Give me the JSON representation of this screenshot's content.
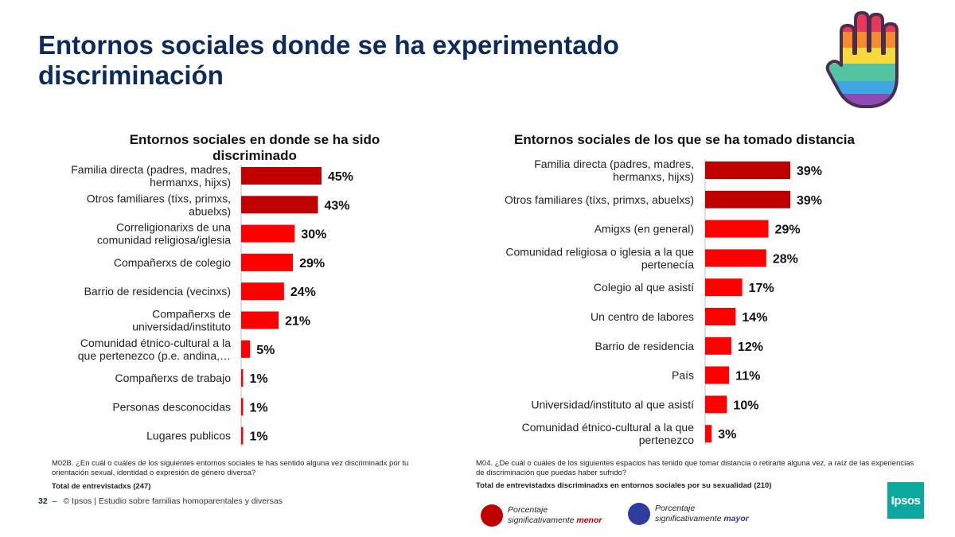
{
  "slide": {
    "title": "Entornos sociales donde se ha experimentado discriminación",
    "page_number": "32",
    "footer_text": "© Ipsos | Estudio sobre familias homoparentales y diversas",
    "logo_text": "Ipsos",
    "hand_icon": "rainbow-hand-icon"
  },
  "notes": {
    "left_question": "M02B. ¿En cuál o cuáles de los siguientes entornos sociales te has sentido alguna vez discriminadx por tu orientación sexual, identidad o expresión de género diversa?",
    "left_base": "Total de entrevistadxs (247)",
    "right_question": "M04. ¿De cuál o cuáles de los siguientes espacios has tenido que tomar distancia o retirarte alguna vez, a raíz de las experiencias de discriminación que puedas haber sufrido?",
    "right_base": "Total de entrevistadxs discriminadxs en entornos sociales por su sexualidad (210)"
  },
  "legend": {
    "lower_label_1": "Porcentaje",
    "lower_label_2a": "significativamente ",
    "lower_label_2b": "menor",
    "higher_label_1": "Porcentaje",
    "higher_label_2a": "significativamente ",
    "higher_label_2b": "mayor",
    "lower_color": "#c00000",
    "higher_color": "#2f3e9e"
  },
  "colors": {
    "bar": "#ff0000",
    "bar_significant_lower": "#c00000",
    "title": "#0d2b5c"
  },
  "chart_data": [
    {
      "type": "bar",
      "orientation": "horizontal",
      "title": "Entornos sociales en donde se ha sido discriminado",
      "categories": [
        "Familia directa (padres, madres, hermanxs, hijxs)",
        "Otros familiares (tíxs, primxs, abuelxs)",
        "Correligionarixs de una comunidad religiosa/iglesia",
        "Compañerxs de colegio",
        "Barrio de residencia (vecinxs)",
        "Compañerxs de universidad/instituto",
        "Comunidad étnico-cultural a la que pertenezco (p.e. andina,…",
        "Compañerxs de trabajo",
        "Personas desconocidas",
        "Lugares publicos"
      ],
      "values": [
        45,
        43,
        30,
        29,
        24,
        21,
        5,
        1,
        1,
        1
      ],
      "value_labels": [
        "45%",
        "43%",
        "30%",
        "29%",
        "24%",
        "21%",
        "5%",
        "1%",
        "1%",
        "1%"
      ],
      "significance": [
        "lower",
        "lower",
        "none",
        "none",
        "none",
        "none",
        "none",
        "none",
        "none",
        "none"
      ],
      "xlim": [
        0,
        100
      ],
      "grid": false
    },
    {
      "type": "bar",
      "orientation": "horizontal",
      "title": "Entornos sociales de los que se ha tomado distancia",
      "categories": [
        "Familia directa (padres, madres, hermanxs, hijxs)",
        "Otros familiares (tíxs, primxs, abuelxs)",
        "Amigxs (en general)",
        "Comunidad religiosa o iglesia a la que pertenecía",
        "Colegio al que asistí",
        "Un centro de labores",
        "Barrio de residencia",
        "País",
        "Universidad/instituto al que asistí",
        "Comunidad étnico-cultural a la que pertenezco"
      ],
      "values": [
        39,
        39,
        29,
        28,
        17,
        14,
        12,
        11,
        10,
        3
      ],
      "value_labels": [
        "39%",
        "39%",
        "29%",
        "28%",
        "17%",
        "14%",
        "12%",
        "11%",
        "10%",
        "3%"
      ],
      "significance": [
        "lower",
        "lower",
        "none",
        "none",
        "none",
        "none",
        "none",
        "none",
        "none",
        "none"
      ],
      "xlim": [
        0,
        100
      ],
      "grid": false
    }
  ]
}
